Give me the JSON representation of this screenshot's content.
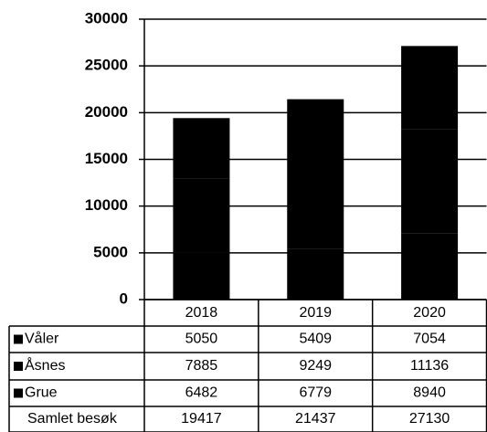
{
  "chart_data": {
    "type": "bar",
    "stacked": true,
    "categories": [
      "2018",
      "2019",
      "2020"
    ],
    "series": [
      {
        "name": "Våler",
        "color": "#000000",
        "values": [
          5050,
          5409,
          7054
        ]
      },
      {
        "name": "Åsnes",
        "color": "#000000",
        "values": [
          7885,
          9249,
          11136
        ]
      },
      {
        "name": "Grue",
        "color": "#000000",
        "values": [
          6482,
          6779,
          8940
        ]
      }
    ],
    "totals": {
      "name": "Samlet besøk",
      "values": [
        19417,
        21437,
        27130
      ]
    },
    "ylim": [
      0,
      30000
    ],
    "yticks": [
      0,
      5000,
      10000,
      15000,
      20000,
      25000,
      30000
    ],
    "grid": true
  }
}
